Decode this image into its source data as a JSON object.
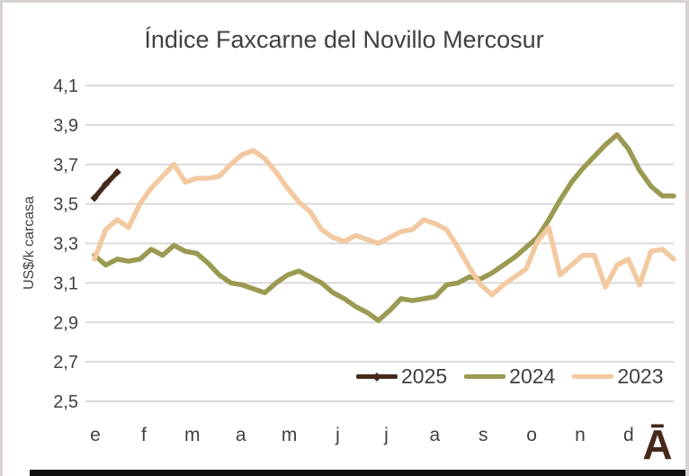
{
  "window": {
    "background": "#ffffff",
    "frame_border_color": "#d8d2d0",
    "bottom_bar_color": "#111111"
  },
  "watermark": {
    "glyph": "Ā",
    "color": "#45291a"
  },
  "chart_data": {
    "type": "line",
    "title": "Índice Faxcarne del Novillo Mercosur",
    "xlabel": "",
    "ylabel": "US$/k carcasa",
    "ylim": [
      2.5,
      4.1
    ],
    "y_tick_step": 0.2,
    "y_tick_labels": [
      "4,1",
      "3,9",
      "3,7",
      "3,5",
      "3,3",
      "3,1",
      "2,9",
      "2,7",
      "2,5"
    ],
    "x_tick_labels": [
      "e",
      "f",
      "m",
      "a",
      "m",
      "j",
      "j",
      "a",
      "s",
      "o",
      "n",
      "d"
    ],
    "grid": true,
    "gridline_color": "#d9d9d9",
    "text_color": "#404040",
    "legend_position": "inside-bottom-right",
    "x_unit": "weeks (52 per year)",
    "series": [
      {
        "name": "2025",
        "color": "#45291a",
        "marker": "diamond",
        "start_week": 0,
        "values": [
          3.53,
          3.6,
          3.66
        ]
      },
      {
        "name": "2024",
        "color": "#9a9a52",
        "marker": "none",
        "start_week": 0,
        "values": [
          3.24,
          3.19,
          3.22,
          3.21,
          3.22,
          3.27,
          3.24,
          3.29,
          3.26,
          3.25,
          3.2,
          3.14,
          3.1,
          3.09,
          3.07,
          3.05,
          3.1,
          3.14,
          3.16,
          3.13,
          3.1,
          3.05,
          3.02,
          2.98,
          2.95,
          2.91,
          2.96,
          3.02,
          3.01,
          3.02,
          3.03,
          3.09,
          3.1,
          3.13,
          3.12,
          3.15,
          3.19,
          3.23,
          3.28,
          3.33,
          3.42,
          3.52,
          3.61,
          3.68,
          3.74,
          3.8,
          3.85,
          3.78,
          3.67,
          3.59,
          3.54,
          3.54
        ]
      },
      {
        "name": "2023",
        "color": "#f2c9a0",
        "marker": "none",
        "start_week": 0,
        "values": [
          3.22,
          3.37,
          3.42,
          3.38,
          3.5,
          3.58,
          3.64,
          3.7,
          3.61,
          3.63,
          3.63,
          3.64,
          3.7,
          3.75,
          3.77,
          3.73,
          3.66,
          3.58,
          3.51,
          3.46,
          3.37,
          3.33,
          3.31,
          3.34,
          3.32,
          3.3,
          3.33,
          3.36,
          3.37,
          3.42,
          3.4,
          3.37,
          3.28,
          3.18,
          3.09,
          3.04,
          3.09,
          3.13,
          3.17,
          3.31,
          3.38,
          3.14,
          3.19,
          3.24,
          3.24,
          3.08,
          3.19,
          3.22,
          3.09,
          3.26,
          3.27,
          3.22
        ]
      }
    ]
  }
}
